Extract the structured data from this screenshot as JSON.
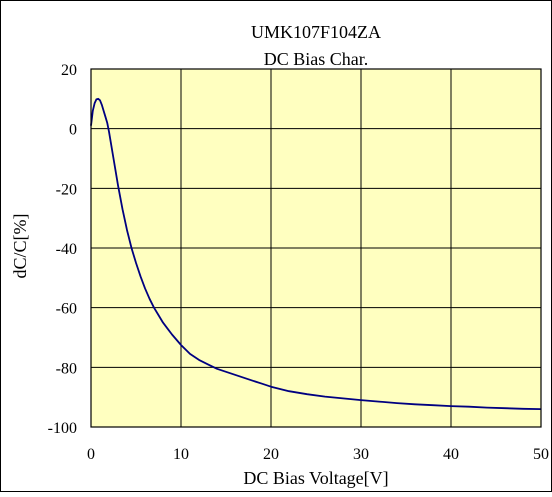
{
  "chart_data": {
    "type": "line",
    "title": "UMK107F104ZA",
    "subtitle": "DC Bias Char.",
    "xlabel": "DC Bias Voltage[V]",
    "ylabel": "dC/C[%]",
    "xlim": [
      0,
      50
    ],
    "ylim": [
      -100,
      20
    ],
    "x_ticks": [
      "0",
      "10",
      "20",
      "30",
      "40",
      "50"
    ],
    "y_ticks": [
      "20",
      "0",
      "-20",
      "-40",
      "-60",
      "-80",
      "-100"
    ],
    "x_tick_values": [
      0,
      10,
      20,
      30,
      40,
      50
    ],
    "y_tick_values": [
      20,
      0,
      -20,
      -40,
      -60,
      -80,
      -100
    ],
    "grid": true,
    "colors": {
      "plot_background": "#FFFFC0",
      "line": "#000080",
      "frame": "#000000"
    },
    "series": [
      {
        "x": [
          0,
          0.2,
          0.4,
          0.6,
          0.8,
          1.0,
          1.2,
          1.4,
          1.6,
          1.8,
          2.0,
          2.5,
          3.0,
          3.5,
          4.0,
          4.5,
          5.0,
          5.5,
          6.0,
          6.5,
          7.0,
          7.5,
          8.0,
          8.5,
          9.0,
          10.0,
          11.0,
          12.0,
          13.0,
          14.0,
          15.0,
          16.0,
          17.0,
          18.0,
          19.0,
          20.0,
          22.0,
          24.0,
          26.0,
          28.0,
          30.0,
          32.0,
          34.0,
          36.0,
          38.0,
          40.0,
          42.0,
          44.0,
          46.0,
          48.0,
          50.0
        ],
        "values": [
          1,
          6,
          8.5,
          9.8,
          10,
          9.5,
          8,
          6,
          4,
          2,
          -1,
          -10,
          -19,
          -27,
          -34,
          -40,
          -45,
          -49.5,
          -53.5,
          -57,
          -60,
          -62.5,
          -65,
          -67,
          -69,
          -72.5,
          -75.5,
          -77.5,
          -79,
          -80.5,
          -81.5,
          -82.5,
          -83.5,
          -84.5,
          -85.5,
          -86.5,
          -88,
          -89,
          -89.8,
          -90.4,
          -91,
          -91.5,
          -92,
          -92.4,
          -92.7,
          -93,
          -93.2,
          -93.5,
          -93.7,
          -93.9,
          -94
        ]
      }
    ]
  }
}
